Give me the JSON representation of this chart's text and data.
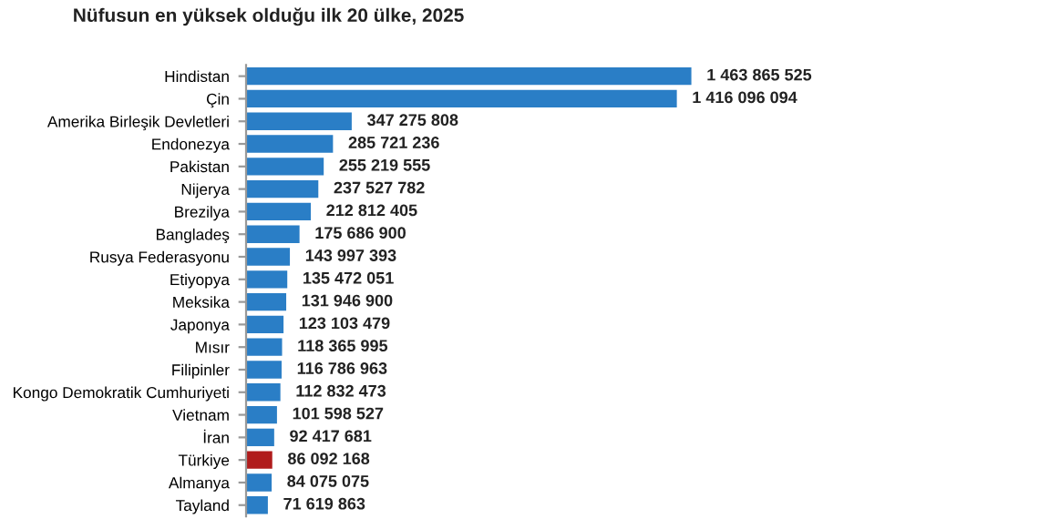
{
  "chart_data": {
    "type": "bar",
    "orientation": "horizontal",
    "title": "Nüfusun en yüksek olduğu ilk 20 ülke, 2025",
    "categories": [
      "Hindistan",
      "Çin",
      "Amerika Birleşik Devletleri",
      "Endonezya",
      "Pakistan",
      "Nijerya",
      "Brezilya",
      "Bangladeş",
      "Rusya Federasyonu",
      "Etiyopya",
      "Meksika",
      "Japonya",
      "Mısır",
      "Filipinler",
      "Kongo Demokratik Cumhuriyeti",
      "Vietnam",
      "İran",
      "Türkiye",
      "Almanya",
      "Tayland"
    ],
    "values": [
      1463865525,
      1416096094,
      347275808,
      285721236,
      255219555,
      237527782,
      212812405,
      175686900,
      143997393,
      135472051,
      131946900,
      123103479,
      118365995,
      116786963,
      112832473,
      101598527,
      92417681,
      86092168,
      84075075,
      71619863
    ],
    "colors": [
      "#2a7ec6",
      "#2a7ec6",
      "#2a7ec6",
      "#2a7ec6",
      "#2a7ec6",
      "#2a7ec6",
      "#2a7ec6",
      "#2a7ec6",
      "#2a7ec6",
      "#2a7ec6",
      "#2a7ec6",
      "#2a7ec6",
      "#2a7ec6",
      "#2a7ec6",
      "#2a7ec6",
      "#2a7ec6",
      "#2a7ec6",
      "#b01c1c",
      "#2a7ec6",
      "#2a7ec6"
    ],
    "value_labels": [
      "1 463 865 525",
      "1 416 096 094",
      "347 275 808",
      "285 721 236",
      "255 219 555",
      "237 527 782",
      "212 812 405",
      "175 686 900",
      "143 997 393",
      "135 472 051",
      "131 946 900",
      "123 103 479",
      "118 365 995",
      "116 786 963",
      "112 832 473",
      "101 598 527",
      "92 417 681",
      "86 092 168",
      "84 075 075",
      "71 619 863"
    ],
    "tick_labels": "y",
    "grid": false,
    "legend": false
  }
}
